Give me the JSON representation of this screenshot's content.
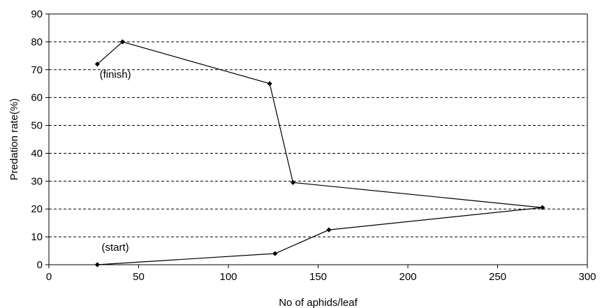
{
  "chart_data": {
    "type": "line",
    "title": "",
    "xlabel": "No of aphids/leaf",
    "ylabel": "Predation rate(%)",
    "xlim": [
      0,
      300
    ],
    "ylim": [
      0,
      90
    ],
    "xticks": [
      0,
      50,
      100,
      150,
      200,
      250,
      300
    ],
    "yticks": [
      0,
      10,
      20,
      30,
      40,
      50,
      60,
      70,
      80,
      90
    ],
    "grid": "horizontal dashed",
    "legend": "none",
    "series": [
      {
        "points": [
          {
            "x": 27,
            "y": 0
          },
          {
            "x": 126,
            "y": 4
          },
          {
            "x": 156,
            "y": 12.5
          },
          {
            "x": 275,
            "y": 20.5
          },
          {
            "x": 136,
            "y": 29.5
          },
          {
            "x": 123,
            "y": 65
          },
          {
            "x": 41,
            "y": 80
          },
          {
            "x": 27,
            "y": 72
          }
        ]
      }
    ],
    "annotations": [
      {
        "text": "(start)",
        "x": 37,
        "y": 5
      },
      {
        "text": "(finish)",
        "x": 37,
        "y": 67
      }
    ],
    "colors": {
      "line": "#000000",
      "marker": "#000000",
      "grid": "#000000"
    }
  }
}
